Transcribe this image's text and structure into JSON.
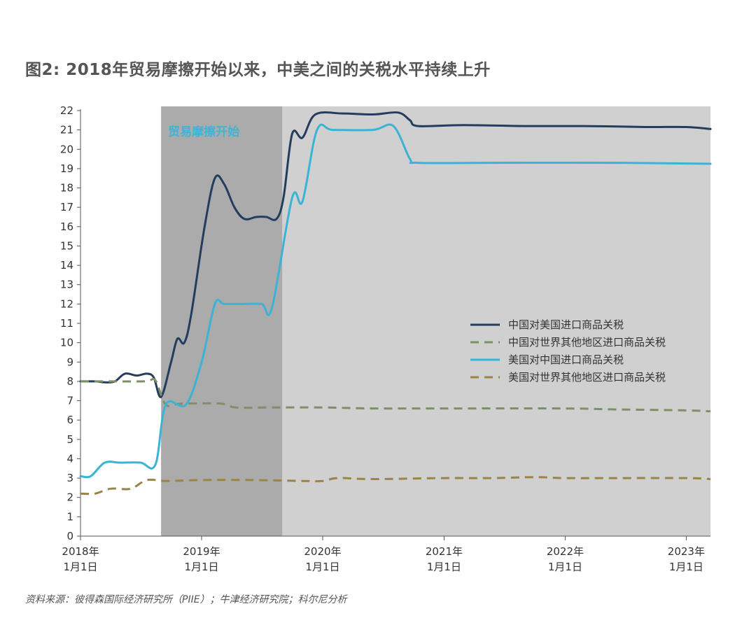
{
  "title": "图2: 2018年贸易摩擦开始以来，中美之间的关税水平持续上升",
  "source": "资料来源：彼得森国际经济研究所（PIIE）；牛津经济研究院；科尔尼分析",
  "colors": {
    "light_band": "#d0d0d0",
    "dark_band": "#ababab",
    "annotation": "#3fb4d6"
  },
  "chart_data": {
    "type": "line",
    "title": "图2: 2018年贸易摩擦开始以来，中美之间的关税水平持续上升",
    "ylim": [
      0,
      22
    ],
    "y_ticks": [
      "0",
      "1",
      "2",
      "3",
      "4",
      "5",
      "6",
      "7",
      "8",
      "9",
      "10",
      "11",
      "12",
      "13",
      "14",
      "15",
      "16",
      "17",
      "18",
      "19",
      "20",
      "21",
      "22"
    ],
    "xlim": [
      "2018-01-01",
      "2023-03-15"
    ],
    "x_ticks": [
      {
        "date": "2018-01-01",
        "line1": "2018年",
        "line2": "1月1日"
      },
      {
        "date": "2019-01-01",
        "line1": "2019年",
        "line2": "1月1日"
      },
      {
        "date": "2020-01-01",
        "line1": "2020年",
        "line2": "1月1日"
      },
      {
        "date": "2021-01-01",
        "line1": "2021年",
        "line2": "1月1日"
      },
      {
        "date": "2022-01-01",
        "line1": "2022年",
        "line2": "1月1日"
      },
      {
        "date": "2023-01-01",
        "line1": "2023年",
        "line2": "1月1日"
      }
    ],
    "shaded_regions": [
      {
        "start": "2018-09-01",
        "end": "2023-03-15",
        "color": "#d0d0d0"
      },
      {
        "start": "2018-09-01",
        "end": "2019-09-01",
        "color": "#ababab",
        "label": "贸易摩擦开始"
      }
    ],
    "legend_position": "right",
    "series": [
      {
        "name": "中国对美国进口商品关税",
        "color": "#243c5e",
        "style": "solid",
        "points": [
          [
            "2018-01-01",
            8.0
          ],
          [
            "2018-02-15",
            8.0
          ],
          [
            "2018-03-15",
            7.95
          ],
          [
            "2018-04-15",
            8.0
          ],
          [
            "2018-05-15",
            8.4
          ],
          [
            "2018-06-20",
            8.3
          ],
          [
            "2018-07-20",
            8.4
          ],
          [
            "2018-08-10",
            8.2
          ],
          [
            "2018-09-01",
            7.2
          ],
          [
            "2018-10-01",
            9.0
          ],
          [
            "2018-10-20",
            10.2
          ],
          [
            "2018-11-10",
            10.0
          ],
          [
            "2018-12-01",
            11.5
          ],
          [
            "2019-01-10",
            16.0
          ],
          [
            "2019-02-10",
            18.5
          ],
          [
            "2019-03-10",
            18.2
          ],
          [
            "2019-04-10",
            17.0
          ],
          [
            "2019-05-10",
            16.4
          ],
          [
            "2019-06-15",
            16.5
          ],
          [
            "2019-07-15",
            16.5
          ],
          [
            "2019-08-15",
            16.4
          ],
          [
            "2019-09-05",
            17.5
          ],
          [
            "2019-10-01",
            20.8
          ],
          [
            "2019-11-01",
            20.6
          ],
          [
            "2019-12-10",
            21.8
          ],
          [
            "2020-03-01",
            21.85
          ],
          [
            "2020-06-01",
            21.8
          ],
          [
            "2020-08-15",
            21.9
          ],
          [
            "2020-09-20",
            21.5
          ],
          [
            "2020-10-15",
            21.2
          ],
          [
            "2021-03-01",
            21.25
          ],
          [
            "2021-09-01",
            21.2
          ],
          [
            "2022-03-01",
            21.2
          ],
          [
            "2022-09-01",
            21.15
          ],
          [
            "2023-01-01",
            21.15
          ],
          [
            "2023-03-15",
            21.05
          ]
        ]
      },
      {
        "name": "中国对世界其他地区进口商品关税",
        "color": "#7e8f6a",
        "style": "dashed",
        "points": [
          [
            "2018-01-01",
            8.0
          ],
          [
            "2018-04-01",
            8.0
          ],
          [
            "2018-07-15",
            8.0
          ],
          [
            "2018-08-15",
            8.05
          ],
          [
            "2018-09-15",
            6.8
          ],
          [
            "2018-11-01",
            6.85
          ],
          [
            "2019-03-01",
            6.85
          ],
          [
            "2019-04-15",
            6.65
          ],
          [
            "2019-08-01",
            6.65
          ],
          [
            "2020-01-01",
            6.65
          ],
          [
            "2020-06-01",
            6.6
          ],
          [
            "2021-01-01",
            6.6
          ],
          [
            "2022-01-01",
            6.6
          ],
          [
            "2022-06-01",
            6.55
          ],
          [
            "2023-01-01",
            6.5
          ],
          [
            "2023-03-15",
            6.45
          ]
        ]
      },
      {
        "name": "美国对中国进口商品关税",
        "color": "#3ab3d4",
        "style": "solid",
        "points": [
          [
            "2018-01-01",
            3.1
          ],
          [
            "2018-02-01",
            3.1
          ],
          [
            "2018-03-15",
            3.8
          ],
          [
            "2018-05-01",
            3.8
          ],
          [
            "2018-07-01",
            3.8
          ],
          [
            "2018-08-15",
            3.7
          ],
          [
            "2018-09-15",
            6.8
          ],
          [
            "2018-11-15",
            6.8
          ],
          [
            "2019-01-01",
            9.0
          ],
          [
            "2019-02-10",
            12.0
          ],
          [
            "2019-03-10",
            12.0
          ],
          [
            "2019-05-01",
            12.0
          ],
          [
            "2019-07-01",
            12.0
          ],
          [
            "2019-08-01",
            11.8
          ],
          [
            "2019-10-01",
            17.5
          ],
          [
            "2019-11-01",
            17.3
          ],
          [
            "2019-12-15",
            21.0
          ],
          [
            "2020-02-01",
            21.0
          ],
          [
            "2020-06-01",
            21.0
          ],
          [
            "2020-08-01",
            21.2
          ],
          [
            "2020-09-20",
            19.5
          ],
          [
            "2020-10-15",
            19.3
          ],
          [
            "2021-06-01",
            19.3
          ],
          [
            "2022-06-01",
            19.3
          ],
          [
            "2023-03-15",
            19.25
          ]
        ]
      },
      {
        "name": "美国对世界其他地区进口商品关税",
        "color": "#9a8447",
        "style": "dashed",
        "points": [
          [
            "2018-01-01",
            2.2
          ],
          [
            "2018-02-15",
            2.2
          ],
          [
            "2018-04-01",
            2.45
          ],
          [
            "2018-06-01",
            2.45
          ],
          [
            "2018-07-20",
            2.9
          ],
          [
            "2018-09-15",
            2.85
          ],
          [
            "2019-01-01",
            2.9
          ],
          [
            "2019-06-01",
            2.9
          ],
          [
            "2019-11-01",
            2.85
          ],
          [
            "2020-01-01",
            2.85
          ],
          [
            "2020-02-15",
            3.0
          ],
          [
            "2020-06-01",
            2.95
          ],
          [
            "2021-01-01",
            3.0
          ],
          [
            "2021-06-01",
            3.0
          ],
          [
            "2021-10-01",
            3.05
          ],
          [
            "2022-01-01",
            3.0
          ],
          [
            "2022-06-01",
            3.0
          ],
          [
            "2023-01-01",
            3.0
          ],
          [
            "2023-03-15",
            2.95
          ]
        ]
      }
    ]
  }
}
